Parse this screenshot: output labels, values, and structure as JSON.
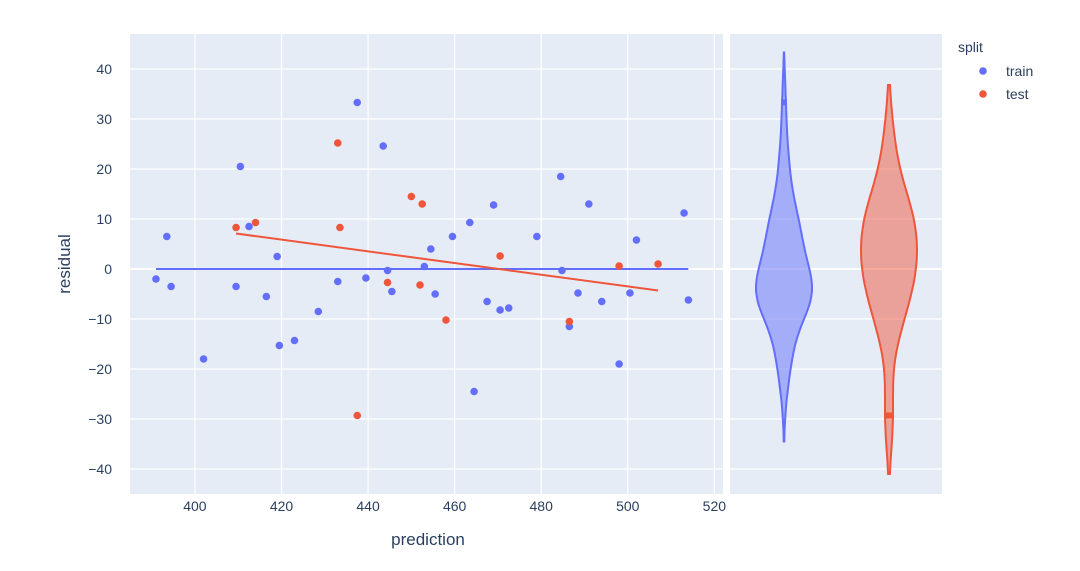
{
  "chart_data": {
    "type": "scatter",
    "xlabel": "prediction",
    "ylabel": "residual",
    "xlim": [
      385,
      522
    ],
    "ylim": [
      -45,
      47
    ],
    "xticks": [
      400,
      420,
      440,
      460,
      480,
      500,
      520
    ],
    "yticks": [
      -40,
      -30,
      -20,
      -10,
      0,
      10,
      20,
      30,
      40
    ],
    "grid": true,
    "legend": {
      "title": "split",
      "position": "top-right"
    },
    "colors": {
      "train": "#636efa",
      "test": "#ef553b",
      "plot_bg": "#e5ecf6",
      "text": "#2a3f5f"
    },
    "series": [
      {
        "name": "train",
        "points": [
          [
            391,
            -2
          ],
          [
            393.5,
            6.5
          ],
          [
            394.5,
            -3.5
          ],
          [
            402,
            -18
          ],
          [
            409.5,
            -3.5
          ],
          [
            410.5,
            20.5
          ],
          [
            412.5,
            8.5
          ],
          [
            416.5,
            -5.5
          ],
          [
            419,
            2.5
          ],
          [
            419.5,
            -15.3
          ],
          [
            423,
            -14.3
          ],
          [
            428.5,
            -8.5
          ],
          [
            433,
            -2.5
          ],
          [
            437.5,
            33.3
          ],
          [
            439.5,
            -1.8
          ],
          [
            443.5,
            24.6
          ],
          [
            444.5,
            -0.3
          ],
          [
            445.5,
            -4.5
          ],
          [
            453,
            0.5
          ],
          [
            454.5,
            4
          ],
          [
            455.5,
            -5
          ],
          [
            459.5,
            6.5
          ],
          [
            463.5,
            9.3
          ],
          [
            464.5,
            -24.5
          ],
          [
            467.5,
            -6.5
          ],
          [
            469,
            12.8
          ],
          [
            470.5,
            -8.2
          ],
          [
            472.5,
            -7.8
          ],
          [
            479,
            6.5
          ],
          [
            484.5,
            18.5
          ],
          [
            484.8,
            -0.3
          ],
          [
            486.5,
            -11.5
          ],
          [
            488.5,
            -4.8
          ],
          [
            491,
            13
          ],
          [
            494,
            -6.5
          ],
          [
            498,
            -19
          ],
          [
            500.5,
            -4.8
          ],
          [
            502,
            5.8
          ],
          [
            513,
            11.2
          ],
          [
            514,
            -6.2
          ]
        ],
        "trendline": [
          [
            391,
            0
          ],
          [
            514,
            0
          ]
        ],
        "violin": {
          "min": -34.5,
          "max": 43.3
        }
      },
      {
        "name": "test",
        "points": [
          [
            409.5,
            8.3
          ],
          [
            414,
            9.3
          ],
          [
            433,
            25.2
          ],
          [
            433.5,
            8.3
          ],
          [
            437.5,
            -29.3
          ],
          [
            444.5,
            -2.7
          ],
          [
            450,
            14.5
          ],
          [
            452,
            -3.2
          ],
          [
            452.5,
            13
          ],
          [
            458,
            -10.2
          ],
          [
            470.5,
            2.6
          ],
          [
            486.5,
            -10.5
          ],
          [
            498,
            0.6
          ],
          [
            507,
            1
          ]
        ],
        "trendline": [
          [
            409.5,
            7.1
          ],
          [
            507,
            -4.3
          ]
        ],
        "violin": {
          "min": -41,
          "max": 36.8
        }
      }
    ]
  }
}
